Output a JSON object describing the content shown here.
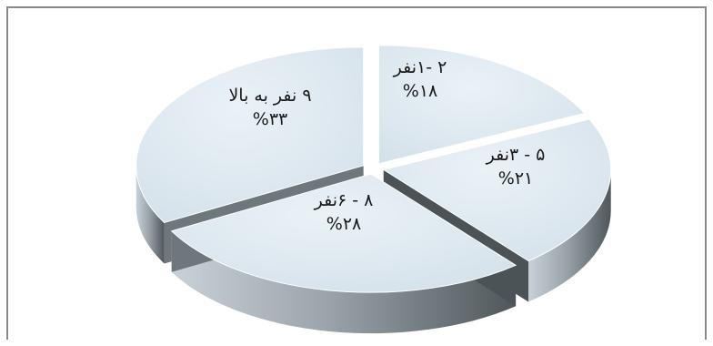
{
  "chart_data": {
    "type": "pie",
    "style": "3d-exploded",
    "slices": [
      {
        "label": "۲ -۱نفر",
        "value": 18,
        "value_text": "%۱۸",
        "color": "#dbe7ef"
      },
      {
        "label": "۵ - ۳نفر",
        "value": 21,
        "value_text": "%۲۱",
        "color": "#dbe7ef"
      },
      {
        "label": "۸ - ۶نفر",
        "value": 28,
        "value_text": "%۲۸",
        "color": "#dbe7ef"
      },
      {
        "label": "۹ نفر به بالا",
        "value": 33,
        "value_text": "%۳۳",
        "color": "#dbe7ef"
      }
    ],
    "title": "",
    "legend": "none"
  },
  "colors": {
    "slice_top": "#dbe7ef",
    "side_dark": "#5c6468",
    "side_light": "#b9c4cb",
    "border": "#8a8a8a"
  }
}
